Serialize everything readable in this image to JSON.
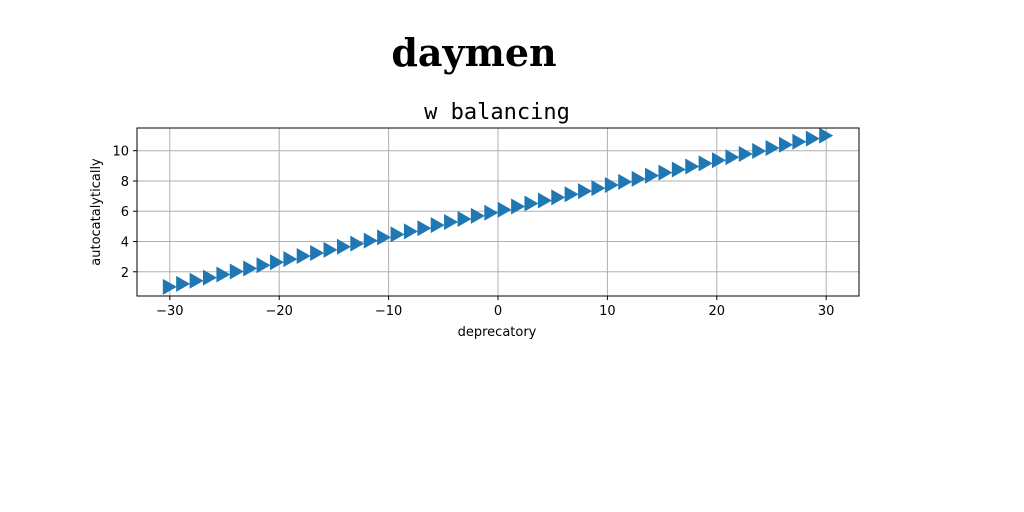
{
  "page": {
    "title": "daymen"
  },
  "chart_data": {
    "type": "scatter",
    "title": "w balancing",
    "xlabel": "deprecatory",
    "ylabel": "autocatalytically",
    "xlim": [
      -33,
      33
    ],
    "ylim": [
      0.4,
      11.5
    ],
    "xticks": [
      -30,
      -20,
      -10,
      0,
      10,
      20,
      30
    ],
    "yticks": [
      2,
      4,
      6,
      8,
      10
    ],
    "grid": true,
    "marker": "triangle-right",
    "series": [
      {
        "color": "#1f77b4",
        "x": [
          -30.0,
          -28.78,
          -27.55,
          -26.33,
          -25.1,
          -23.88,
          -22.65,
          -21.43,
          -20.2,
          -18.98,
          -17.76,
          -16.53,
          -15.31,
          -14.08,
          -12.86,
          -11.63,
          -10.41,
          -9.18,
          -7.96,
          -6.73,
          -5.51,
          -4.29,
          -3.06,
          -1.84,
          -0.61,
          0.61,
          1.84,
          3.06,
          4.29,
          5.51,
          6.73,
          7.96,
          9.18,
          10.41,
          11.63,
          12.86,
          14.08,
          15.31,
          16.53,
          17.76,
          18.98,
          20.2,
          21.43,
          22.65,
          23.88,
          25.1,
          26.33,
          27.55,
          28.78,
          30.0
        ],
        "y": [
          1.0,
          1.2,
          1.41,
          1.61,
          1.82,
          2.02,
          2.22,
          2.43,
          2.63,
          2.84,
          3.04,
          3.24,
          3.45,
          3.65,
          3.86,
          4.06,
          4.27,
          4.47,
          4.67,
          4.88,
          5.08,
          5.29,
          5.49,
          5.69,
          5.9,
          6.1,
          6.31,
          6.51,
          6.71,
          6.92,
          7.12,
          7.33,
          7.53,
          7.73,
          7.94,
          8.14,
          8.35,
          8.55,
          8.76,
          8.96,
          9.16,
          9.37,
          9.57,
          9.78,
          9.98,
          10.18,
          10.39,
          10.59,
          10.8,
          11.0
        ]
      }
    ]
  }
}
